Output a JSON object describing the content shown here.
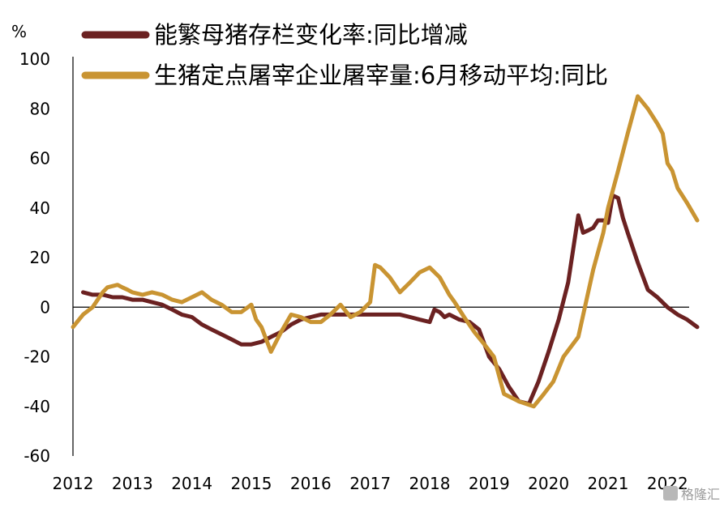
{
  "chart_data": {
    "type": "line",
    "ylabel": "%",
    "ylim": [
      -60,
      100
    ],
    "xlim": [
      2012,
      2022.65
    ],
    "yticks": [
      100,
      80,
      60,
      40,
      20,
      0,
      -20,
      -40,
      -60
    ],
    "xticks": [
      2012,
      2013,
      2014,
      2015,
      2016,
      2017,
      2018,
      2019,
      2020,
      2021,
      2022
    ],
    "grid": false,
    "legend_position": "top",
    "series": [
      {
        "name": "能繁母猪存栏变化率:同比增减",
        "color": "#6b2121",
        "x": [
          2012.17,
          2012.33,
          2012.5,
          2012.67,
          2012.83,
          2013.0,
          2013.17,
          2013.33,
          2013.5,
          2013.67,
          2013.83,
          2014.0,
          2014.17,
          2014.33,
          2014.5,
          2014.67,
          2014.83,
          2015.0,
          2015.17,
          2015.33,
          2015.5,
          2015.67,
          2015.83,
          2016.0,
          2016.17,
          2016.33,
          2016.5,
          2016.67,
          2016.83,
          2017.0,
          2017.17,
          2017.33,
          2017.5,
          2017.67,
          2017.83,
          2018.0,
          2018.08,
          2018.17,
          2018.25,
          2018.33,
          2018.5,
          2018.67,
          2018.83,
          2019.0,
          2019.17,
          2019.33,
          2019.5,
          2019.67,
          2019.83,
          2020.0,
          2020.17,
          2020.33,
          2020.5,
          2020.58,
          2020.67,
          2020.75,
          2020.83,
          2020.92,
          2021.0,
          2021.08,
          2021.17,
          2021.25,
          2021.33,
          2021.5,
          2021.67,
          2021.83,
          2022.0,
          2022.17,
          2022.33,
          2022.5
        ],
        "values": [
          6,
          5,
          5,
          4,
          4,
          3,
          3,
          2,
          1,
          -1,
          -3,
          -4,
          -7,
          -9,
          -11,
          -13,
          -15,
          -15,
          -14,
          -12,
          -10,
          -7,
          -5,
          -4,
          -3,
          -3,
          -3,
          -3,
          -3,
          -3,
          -3,
          -3,
          -3,
          -4,
          -5,
          -6,
          -1,
          -2,
          -4,
          -3,
          -5,
          -6,
          -9,
          -20,
          -25,
          -32,
          -38,
          -39,
          -30,
          -18,
          -5,
          10,
          37,
          30,
          31,
          32,
          35,
          35,
          34,
          45,
          44,
          36,
          30,
          18,
          7,
          4,
          0,
          -3,
          -5,
          -8
        ],
        "end_label": "",
        "stroke_width": 5
      },
      {
        "name": "生猪定点屠宰企业屠宰量:6月移动平均:同比",
        "color": "#c99432",
        "x": [
          2012.0,
          2012.17,
          2012.33,
          2012.5,
          2012.58,
          2012.75,
          2012.83,
          2012.92,
          2013.0,
          2013.17,
          2013.33,
          2013.5,
          2013.67,
          2013.83,
          2014.0,
          2014.17,
          2014.33,
          2014.5,
          2014.67,
          2014.83,
          2015.0,
          2015.08,
          2015.17,
          2015.33,
          2015.5,
          2015.67,
          2015.83,
          2016.0,
          2016.17,
          2016.33,
          2016.5,
          2016.67,
          2016.83,
          2017.0,
          2017.08,
          2017.17,
          2017.33,
          2017.5,
          2017.67,
          2017.83,
          2018.0,
          2018.17,
          2018.33,
          2018.42,
          2018.58,
          2018.75,
          2018.92,
          2019.08,
          2019.25,
          2019.5,
          2019.75,
          2019.92,
          2020.08,
          2020.25,
          2020.5,
          2020.75,
          2020.92,
          2021.0,
          2021.17,
          2021.33,
          2021.5,
          2021.67,
          2021.83,
          2021.92,
          2022.0,
          2022.08,
          2022.17,
          2022.33,
          2022.5
        ],
        "values": [
          -8,
          -3,
          0,
          6,
          8,
          9,
          8,
          7,
          6,
          5,
          6,
          5,
          3,
          2,
          4,
          6,
          3,
          1,
          -2,
          -2,
          1,
          -5,
          -8,
          -18,
          -10,
          -3,
          -4,
          -6,
          -6,
          -3,
          1,
          -4,
          -2,
          2,
          17,
          16,
          12,
          6,
          10,
          14,
          16,
          12,
          5,
          2,
          -4,
          -10,
          -15,
          -20,
          -35,
          -38,
          -40,
          -35,
          -30,
          -20,
          -12,
          15,
          30,
          40,
          55,
          70,
          85,
          80,
          74,
          70,
          58,
          55,
          48,
          42,
          35
        ],
        "end_label": "",
        "stroke_width": 5
      }
    ]
  },
  "watermark": "格隆汇"
}
